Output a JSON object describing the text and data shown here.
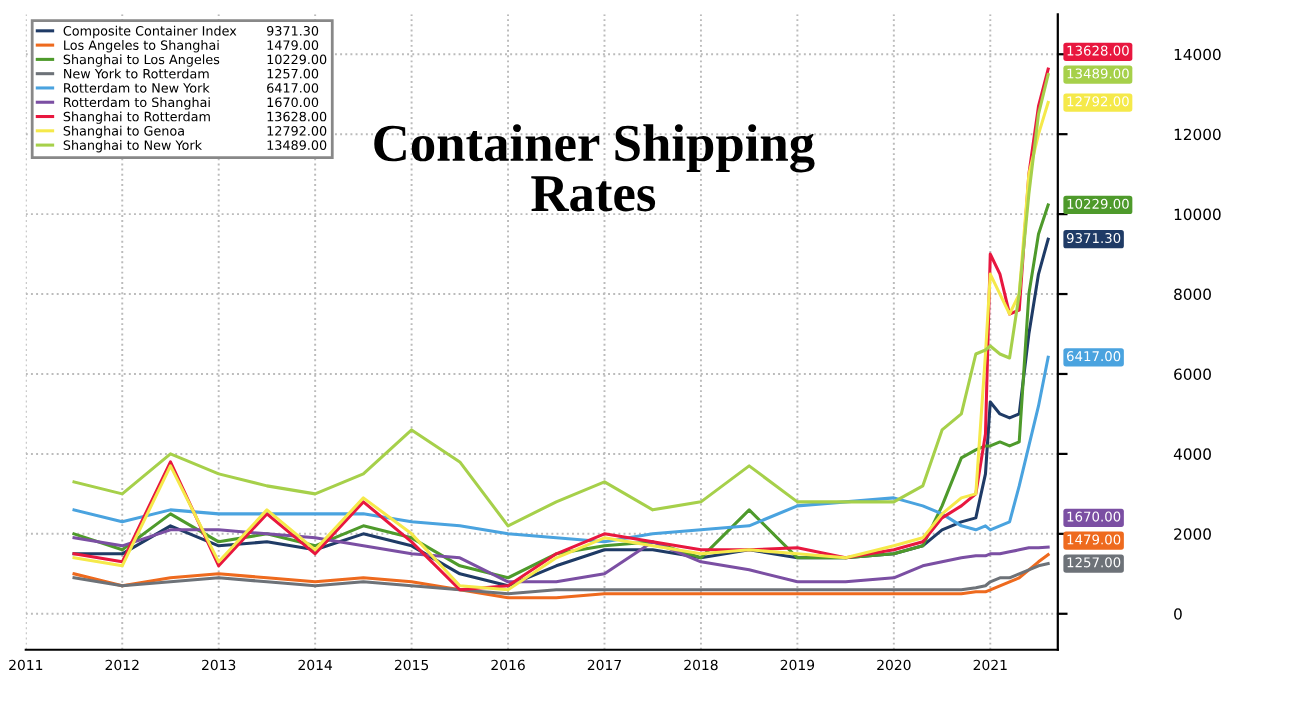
{
  "chart_data": {
    "type": "line",
    "title": "Container Shipping Rates",
    "x": [
      2011.5,
      2012,
      2012.5,
      2013,
      2013.5,
      2014,
      2014.5,
      2015,
      2015.5,
      2016,
      2016.5,
      2017,
      2017.5,
      2018,
      2018.5,
      2019,
      2019.5,
      2020,
      2020.3,
      2020.5,
      2020.7,
      2020.85,
      2020.95,
      2021.0,
      2021.1,
      2021.2,
      2021.3,
      2021.4,
      2021.5,
      2021.6
    ],
    "series": [
      {
        "name": "Composite Container Index",
        "color": "#1f3b66",
        "values": [
          1500,
          1500,
          2200,
          1700,
          1800,
          1600,
          2000,
          1700,
          1000,
          700,
          1200,
          1600,
          1600,
          1400,
          1600,
          1400,
          1400,
          1500,
          1700,
          2100,
          2300,
          2400,
          3500,
          5300,
          5000,
          4900,
          5000,
          7000,
          8500,
          9371.3
        ],
        "value_labels": [
          null,
          null,
          null,
          null,
          null,
          null,
          null,
          null,
          null,
          null,
          null,
          null,
          null,
          null,
          null,
          null,
          null,
          null,
          null,
          null,
          null,
          null,
          null,
          null,
          null,
          null,
          null,
          null,
          null,
          "9371.30"
        ]
      },
      {
        "name": "Los Angeles to Shanghai",
        "color": "#ee6a1e",
        "values": [
          1000,
          700,
          900,
          1000,
          900,
          800,
          900,
          800,
          600,
          400,
          400,
          500,
          500,
          500,
          500,
          500,
          500,
          500,
          500,
          500,
          500,
          550,
          550,
          600,
          700,
          800,
          900,
          1100,
          1300,
          1479
        ],
        "value_labels": [
          null,
          null,
          null,
          null,
          null,
          null,
          null,
          null,
          null,
          null,
          null,
          null,
          null,
          null,
          null,
          null,
          null,
          null,
          null,
          null,
          null,
          null,
          null,
          null,
          null,
          null,
          null,
          null,
          null,
          "1479.00"
        ]
      },
      {
        "name": "Shanghai to Los Angeles",
        "color": "#4e9a2b",
        "values": [
          2000,
          1600,
          2500,
          1800,
          2000,
          1700,
          2200,
          1900,
          1200,
          900,
          1500,
          1700,
          1800,
          1400,
          2600,
          1400,
          1400,
          1500,
          1700,
          2700,
          3900,
          4100,
          4200,
          4200,
          4300,
          4200,
          4300,
          8000,
          9500,
          10229
        ],
        "value_labels": [
          null,
          null,
          null,
          null,
          null,
          null,
          null,
          null,
          null,
          null,
          null,
          null,
          null,
          null,
          null,
          null,
          null,
          null,
          null,
          null,
          null,
          null,
          null,
          null,
          null,
          null,
          null,
          null,
          null,
          "10229.00"
        ]
      },
      {
        "name": "New York to Rotterdam",
        "color": "#6d7278",
        "values": [
          900,
          700,
          800,
          900,
          800,
          700,
          800,
          700,
          600,
          500,
          600,
          600,
          600,
          600,
          600,
          600,
          600,
          600,
          600,
          600,
          600,
          650,
          700,
          800,
          900,
          900,
          1000,
          1100,
          1200,
          1257
        ],
        "value_labels": [
          null,
          null,
          null,
          null,
          null,
          null,
          null,
          null,
          null,
          null,
          null,
          null,
          null,
          null,
          null,
          null,
          null,
          null,
          null,
          null,
          null,
          null,
          null,
          null,
          null,
          null,
          null,
          null,
          null,
          "1257.00"
        ]
      },
      {
        "name": "Rotterdam to New York",
        "color": "#4aa3df",
        "values": [
          2600,
          2300,
          2600,
          2500,
          2500,
          2500,
          2500,
          2300,
          2200,
          2000,
          1900,
          1800,
          2000,
          2100,
          2200,
          2700,
          2800,
          2900,
          2700,
          2500,
          2200,
          2100,
          2200,
          2100,
          2200,
          2300,
          3200,
          4200,
          5200,
          6417
        ],
        "value_labels": [
          null,
          null,
          null,
          null,
          null,
          null,
          null,
          null,
          null,
          null,
          null,
          null,
          null,
          null,
          null,
          null,
          null,
          null,
          null,
          null,
          null,
          null,
          null,
          null,
          null,
          null,
          null,
          null,
          null,
          "6417.00"
        ]
      },
      {
        "name": "Rotterdam to Shanghai",
        "color": "#7b4fa3",
        "values": [
          1900,
          1700,
          2100,
          2100,
          2000,
          1900,
          1700,
          1500,
          1400,
          800,
          800,
          1000,
          1800,
          1300,
          1100,
          800,
          800,
          900,
          1200,
          1300,
          1400,
          1450,
          1450,
          1500,
          1500,
          1550,
          1600,
          1650,
          1650,
          1670
        ],
        "value_labels": [
          null,
          null,
          null,
          null,
          null,
          null,
          null,
          null,
          null,
          null,
          null,
          null,
          null,
          null,
          null,
          null,
          null,
          null,
          null,
          null,
          null,
          null,
          null,
          null,
          null,
          null,
          null,
          null,
          null,
          "1670.00"
        ]
      },
      {
        "name": "Shanghai to Rotterdam",
        "color": "#e8173f",
        "values": [
          1500,
          1300,
          3800,
          1200,
          2500,
          1500,
          2800,
          1800,
          600,
          700,
          1500,
          2000,
          1800,
          1600,
          1600,
          1650,
          1400,
          1600,
          1800,
          2400,
          2700,
          3000,
          4500,
          9000,
          8500,
          7500,
          7600,
          11000,
          12700,
          13628
        ],
        "value_labels": [
          null,
          null,
          null,
          null,
          null,
          null,
          null,
          null,
          null,
          null,
          null,
          null,
          null,
          null,
          null,
          null,
          null,
          null,
          null,
          null,
          null,
          null,
          null,
          null,
          null,
          null,
          null,
          null,
          null,
          "13628.00"
        ]
      },
      {
        "name": "Shanghai to Genoa",
        "color": "#f5e94a",
        "values": [
          1400,
          1200,
          3700,
          1300,
          2600,
          1600,
          2900,
          2000,
          700,
          600,
          1400,
          1900,
          1700,
          1500,
          1600,
          1500,
          1400,
          1700,
          1900,
          2500,
          2900,
          3000,
          6500,
          8500,
          8000,
          7500,
          8000,
          11000,
          12000,
          12792
        ],
        "value_labels": [
          null,
          null,
          null,
          null,
          null,
          null,
          null,
          null,
          null,
          null,
          null,
          null,
          null,
          null,
          null,
          null,
          null,
          null,
          null,
          null,
          null,
          null,
          null,
          null,
          null,
          null,
          null,
          null,
          null,
          "12792.00"
        ]
      },
      {
        "name": "Shanghai to New York",
        "color": "#a6d04a",
        "values": [
          3300,
          3000,
          4000,
          3500,
          3200,
          3000,
          3500,
          4600,
          3800,
          2200,
          2800,
          3300,
          2600,
          2800,
          3700,
          2800,
          2800,
          2800,
          3200,
          4600,
          5000,
          6500,
          6600,
          6700,
          6500,
          6400,
          8000,
          10500,
          12500,
          13489
        ],
        "value_labels": [
          null,
          null,
          null,
          null,
          null,
          null,
          null,
          null,
          null,
          null,
          null,
          null,
          null,
          null,
          null,
          null,
          null,
          null,
          null,
          null,
          null,
          null,
          null,
          null,
          null,
          null,
          null,
          null,
          null,
          "13489.00"
        ]
      }
    ],
    "xlim": [
      2011.0,
      2021.7
    ],
    "xticks": [
      2011,
      2012,
      2013,
      2014,
      2015,
      2016,
      2017,
      2018,
      2019,
      2020,
      2021
    ],
    "ylim": [
      -900,
      15000
    ],
    "yticks": [
      0,
      2000,
      4000,
      6000,
      8000,
      10000,
      12000,
      14000
    ],
    "grid": true,
    "legend": "top left",
    "marker": "none",
    "line_style": "solid"
  }
}
